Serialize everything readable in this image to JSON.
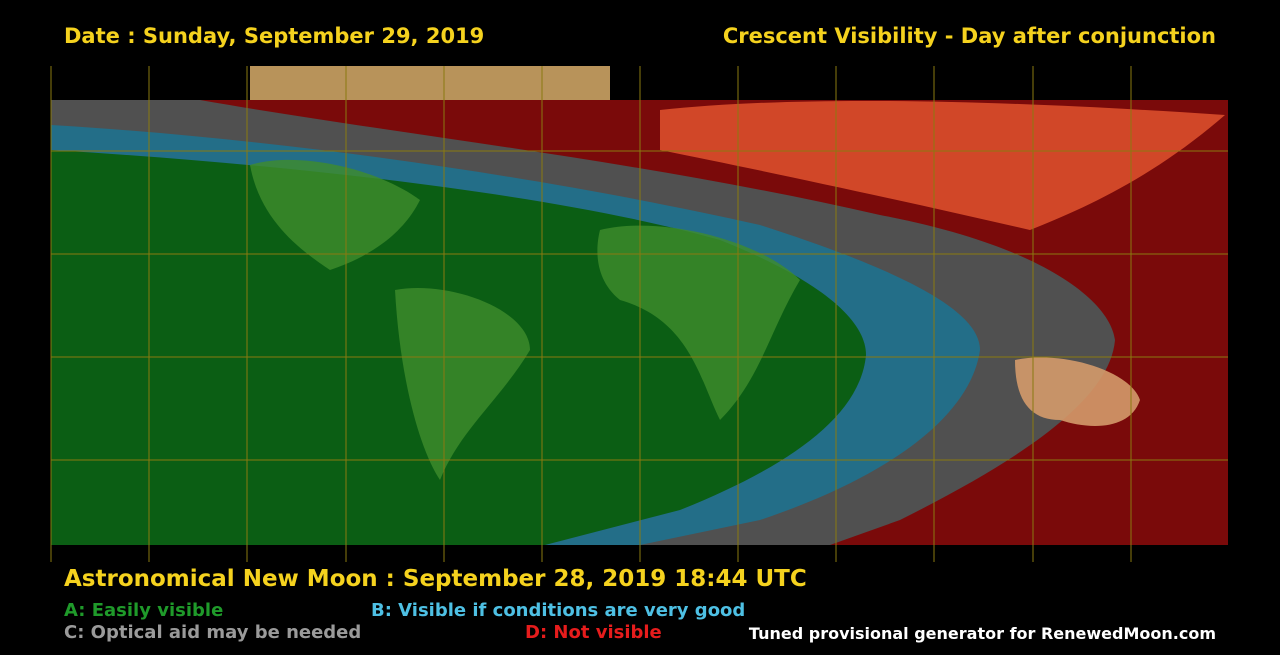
{
  "header": {
    "date": "Date : Sunday, September 29, 2019",
    "title": "Crescent Visibility - Day after conjunction"
  },
  "footer": {
    "new_moon": "Astronomical New Moon : September 28, 2019 18:44 UTC",
    "credit": "Tuned provisional generator for RenewedMoon.com"
  },
  "legend": {
    "a": "A: Easily visible",
    "b": "B: Visible if conditions are very good",
    "c": "C: Optical aid may be needed",
    "d": "D: Not visible"
  }
}
